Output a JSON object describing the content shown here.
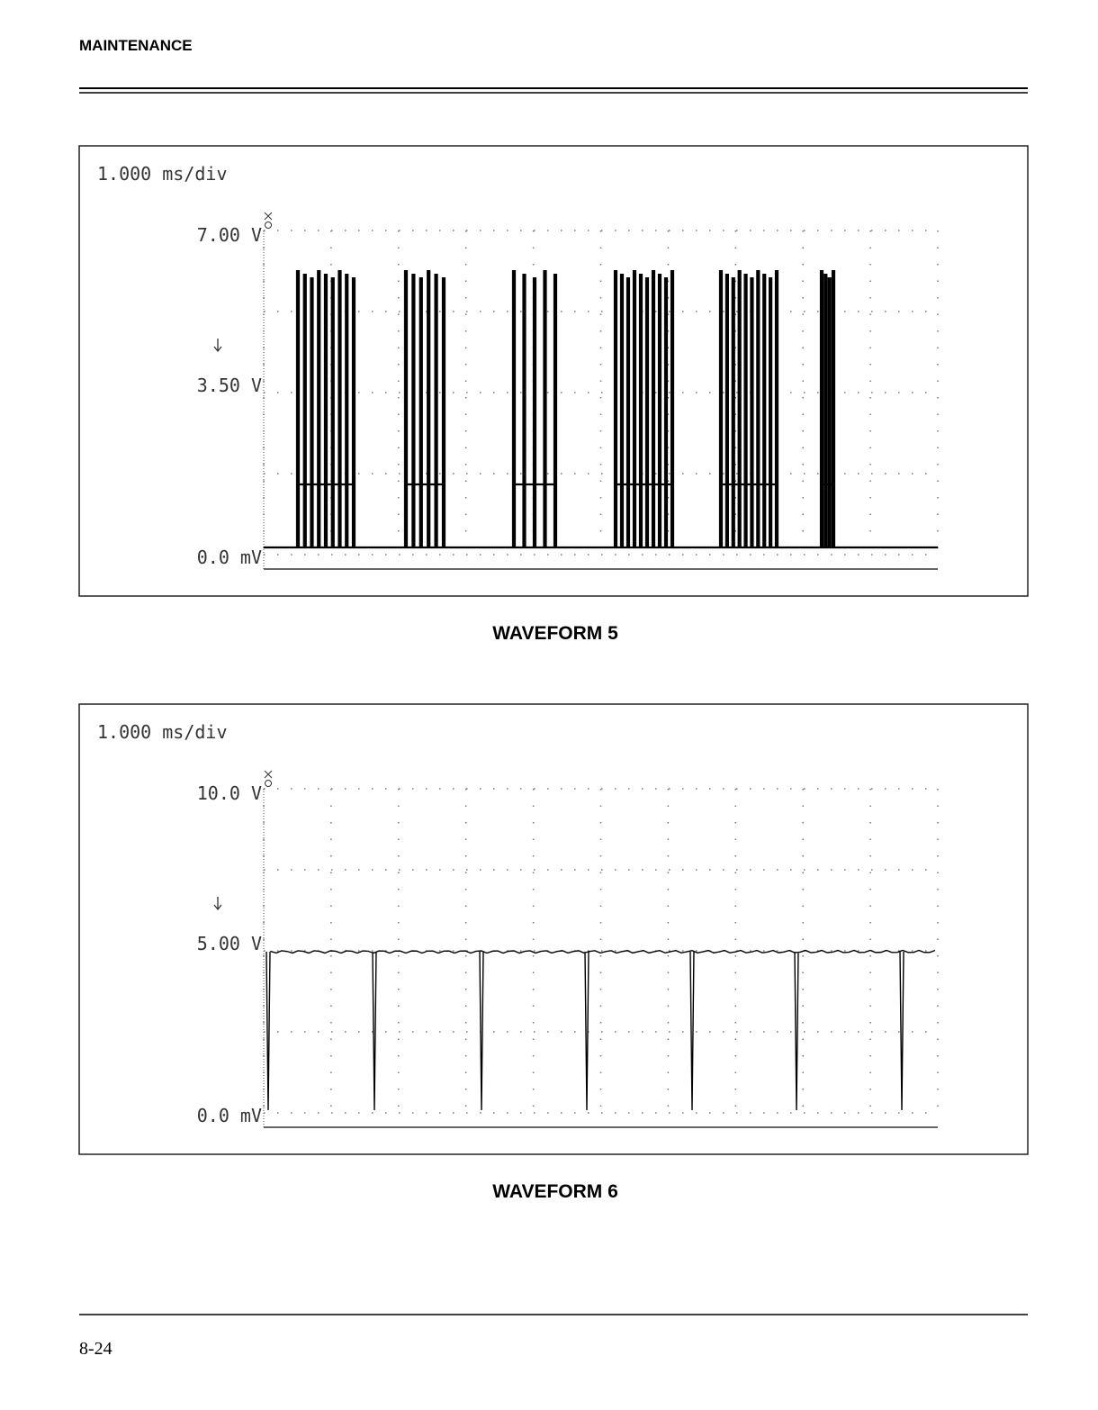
{
  "header": {
    "section": "MAINTENANCE"
  },
  "figures": [
    {
      "timebase": "1.000 ms/div",
      "levels": [
        "7.00 V",
        "3.50 V",
        "0.0 mV"
      ],
      "caption": "WAVEFORM 5"
    },
    {
      "timebase": "1.000 ms/div",
      "levels": [
        "10.0 V",
        "5.00 V",
        "0.0 mV"
      ],
      "caption": "WAVEFORM 6"
    }
  ],
  "footer": {
    "page": "8-24"
  }
}
